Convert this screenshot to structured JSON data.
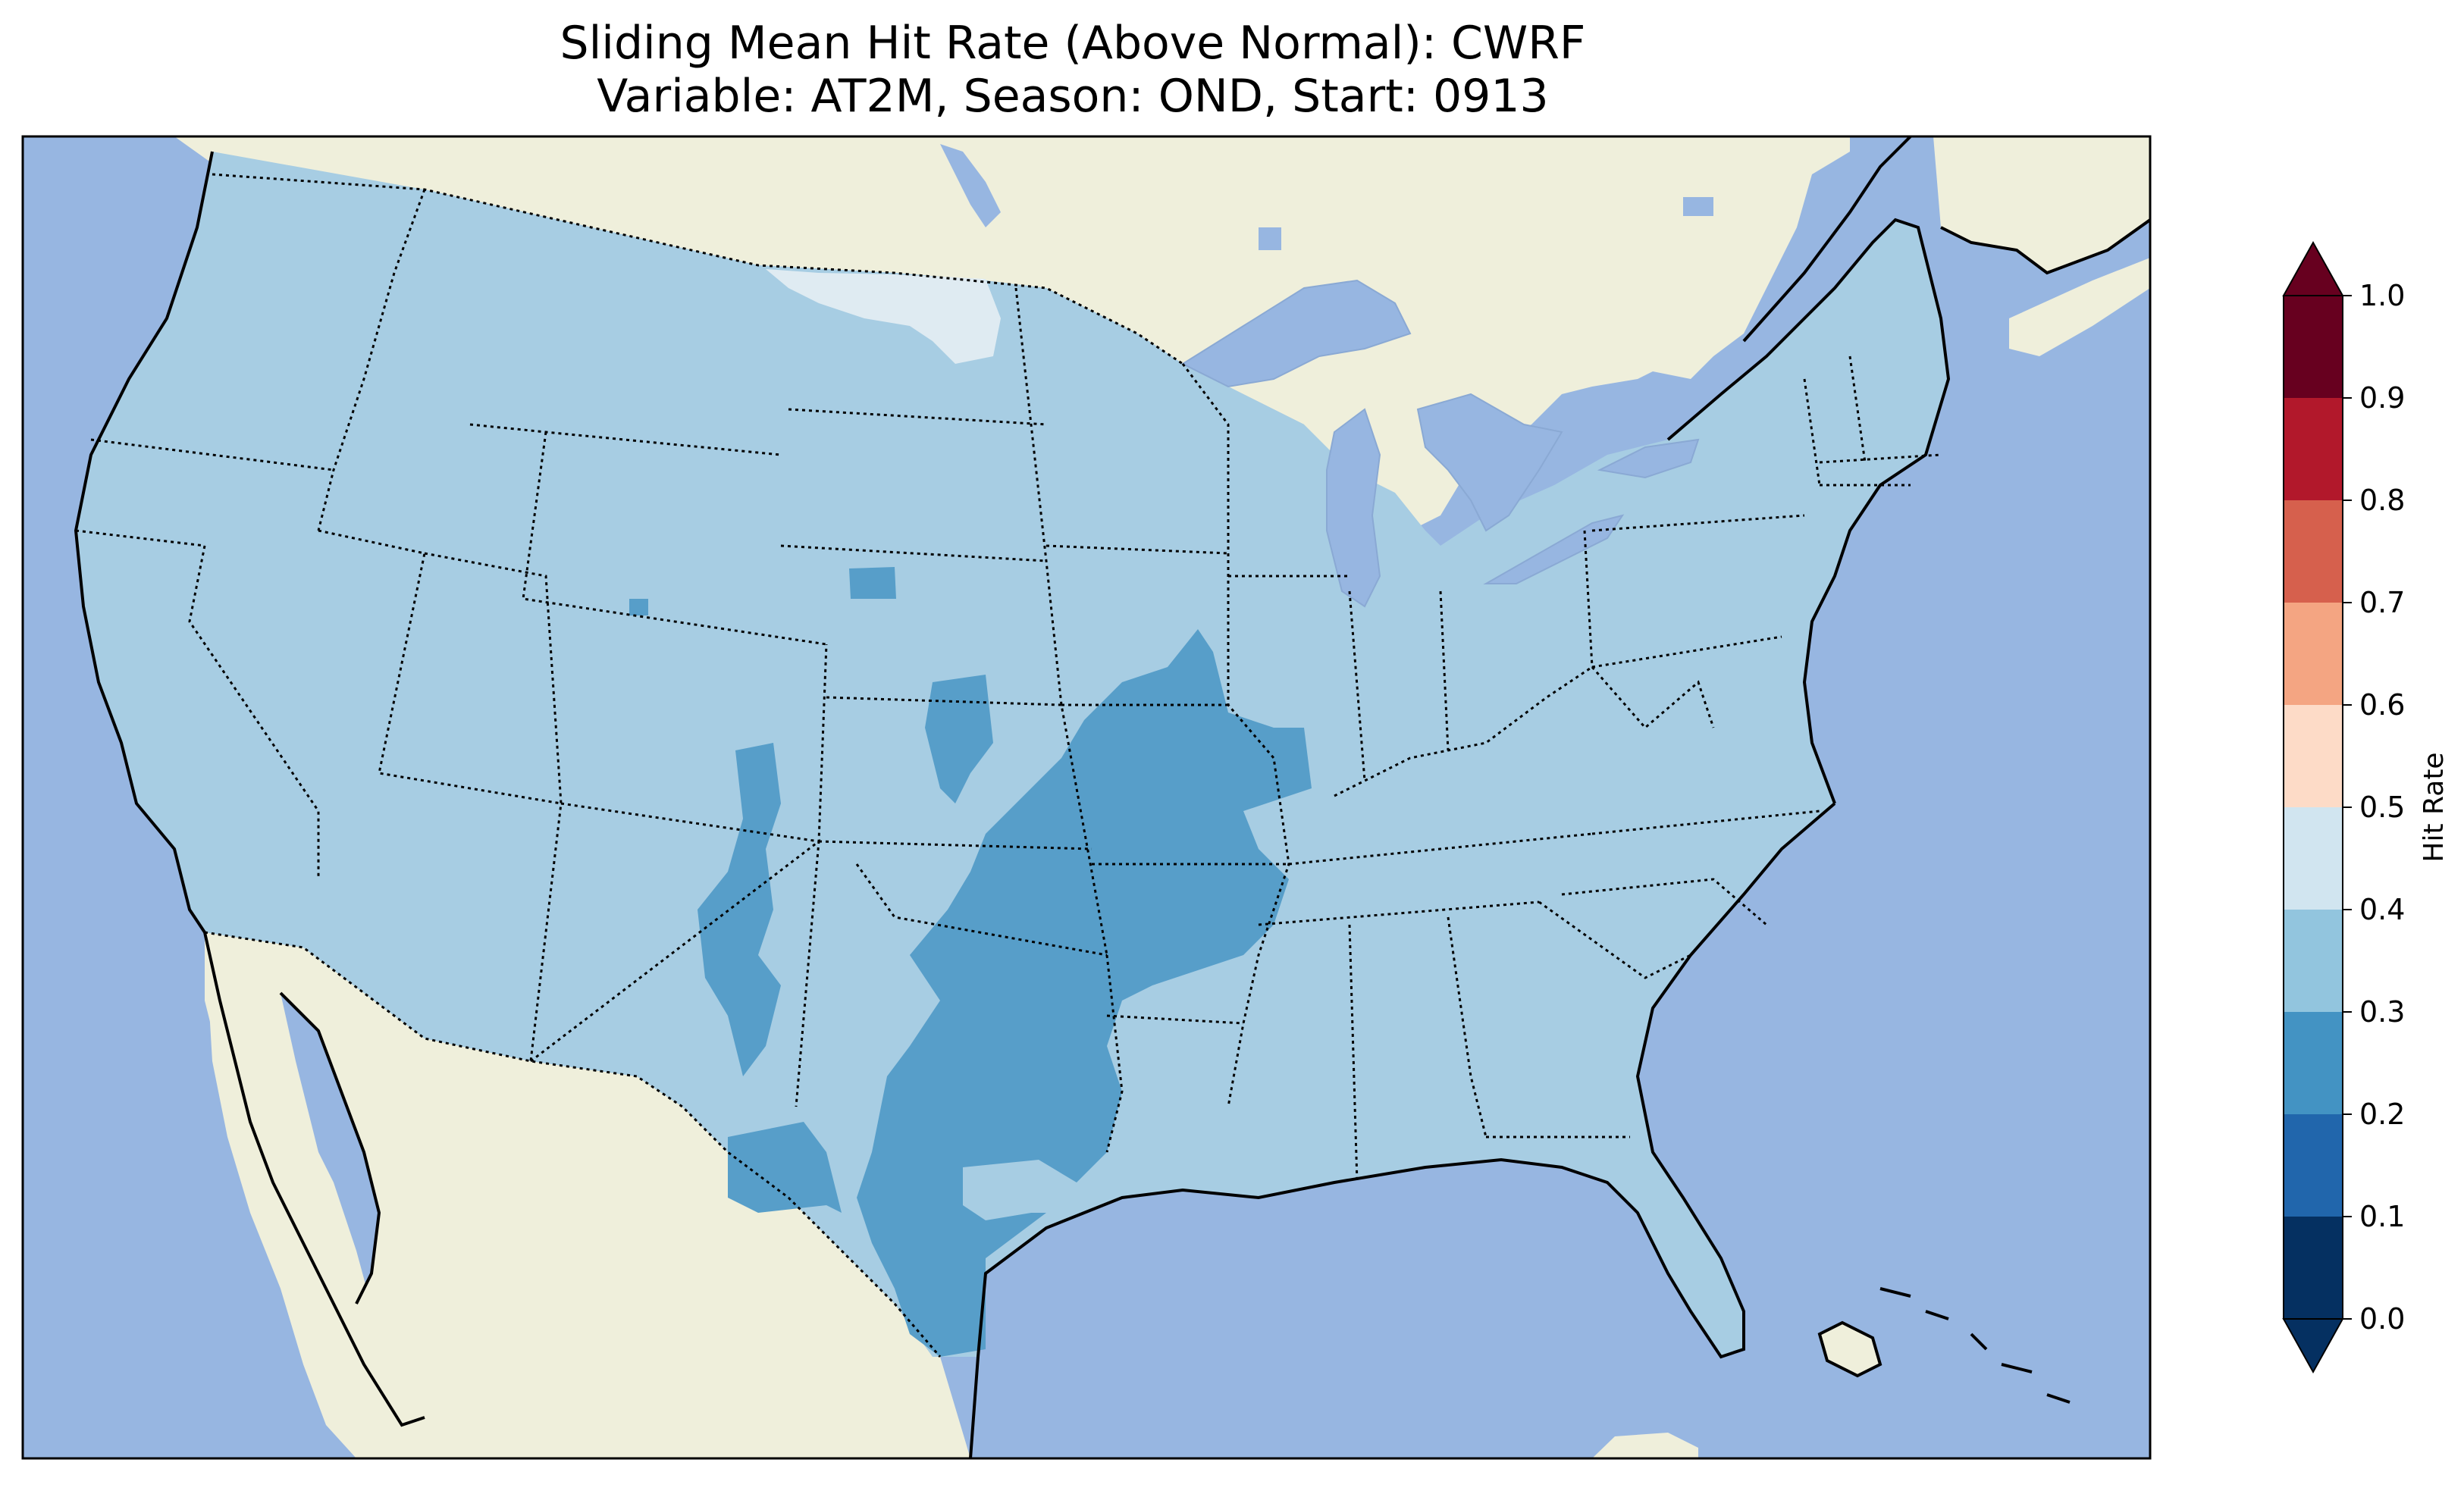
{
  "title_line1": "Sliding Mean Hit Rate (Above Normal): CWRF",
  "title_line2": "Variable: AT2M, Season: OND, Start: 0913",
  "colorbar": {
    "label": "Hit Rate",
    "ticks": [
      "0.0",
      "0.1",
      "0.2",
      "0.3",
      "0.4",
      "0.5",
      "0.6",
      "0.7",
      "0.8",
      "0.9",
      "1.0"
    ],
    "colors": [
      "#053061",
      "#2166ac",
      "#4393c3",
      "#92c5de",
      "#d1e5f0",
      "#fddbc7",
      "#f4a582",
      "#d6604d",
      "#b2182b",
      "#67001f"
    ],
    "under_color": "#053061",
    "over_color": "#67001f"
  },
  "colors": {
    "ocean": "#97b6e1",
    "land": "#efefdb",
    "class_030_040": "#a7cde3",
    "class_020_030": "#579ec9",
    "class_040_050": "#dfebf2"
  }
}
